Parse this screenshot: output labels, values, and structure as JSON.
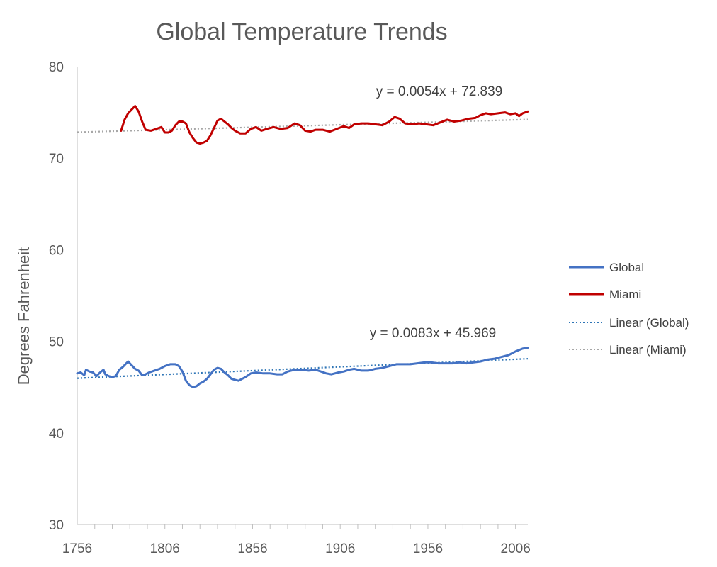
{
  "chart_data": {
    "type": "line",
    "title": "Global Temperature Trends",
    "xlabel": "",
    "ylabel": "Degrees Fahrenheit",
    "xlim": [
      1756,
      2013
    ],
    "ylim": [
      30,
      80
    ],
    "x_ticks": [
      1756,
      1806,
      1856,
      1906,
      1956,
      2006
    ],
    "y_ticks": [
      30,
      40,
      50,
      60,
      70,
      80
    ],
    "grid": false,
    "legend_position": "right",
    "series": [
      {
        "name": "Global",
        "color": "#4472c4",
        "style": "solid",
        "points": [
          [
            1756,
            46.5
          ],
          [
            1758,
            46.6
          ],
          [
            1760,
            46.3
          ],
          [
            1761,
            46.9
          ],
          [
            1763,
            46.7
          ],
          [
            1765,
            46.6
          ],
          [
            1767,
            46.2
          ],
          [
            1769,
            46.6
          ],
          [
            1771,
            46.9
          ],
          [
            1772,
            46.4
          ],
          [
            1774,
            46.2
          ],
          [
            1776,
            46.1
          ],
          [
            1778,
            46.2
          ],
          [
            1780,
            46.9
          ],
          [
            1782,
            47.2
          ],
          [
            1784,
            47.6
          ],
          [
            1785,
            47.8
          ],
          [
            1787,
            47.4
          ],
          [
            1789,
            47.0
          ],
          [
            1791,
            46.8
          ],
          [
            1793,
            46.3
          ],
          [
            1795,
            46.4
          ],
          [
            1797,
            46.6
          ],
          [
            1800,
            46.8
          ],
          [
            1803,
            47.0
          ],
          [
            1806,
            47.3
          ],
          [
            1809,
            47.5
          ],
          [
            1812,
            47.5
          ],
          [
            1814,
            47.3
          ],
          [
            1816,
            46.7
          ],
          [
            1818,
            45.7
          ],
          [
            1820,
            45.2
          ],
          [
            1822,
            45.0
          ],
          [
            1824,
            45.1
          ],
          [
            1826,
            45.4
          ],
          [
            1828,
            45.6
          ],
          [
            1830,
            45.9
          ],
          [
            1832,
            46.4
          ],
          [
            1834,
            46.9
          ],
          [
            1836,
            47.1
          ],
          [
            1838,
            47.0
          ],
          [
            1840,
            46.6
          ],
          [
            1842,
            46.3
          ],
          [
            1844,
            45.9
          ],
          [
            1846,
            45.8
          ],
          [
            1848,
            45.7
          ],
          [
            1850,
            45.9
          ],
          [
            1852,
            46.1
          ],
          [
            1855,
            46.5
          ],
          [
            1858,
            46.6
          ],
          [
            1862,
            46.5
          ],
          [
            1866,
            46.5
          ],
          [
            1870,
            46.4
          ],
          [
            1873,
            46.4
          ],
          [
            1876,
            46.7
          ],
          [
            1880,
            46.9
          ],
          [
            1884,
            46.9
          ],
          [
            1888,
            46.8
          ],
          [
            1892,
            46.9
          ],
          [
            1895,
            46.7
          ],
          [
            1898,
            46.5
          ],
          [
            1901,
            46.4
          ],
          [
            1905,
            46.6
          ],
          [
            1908,
            46.7
          ],
          [
            1911,
            46.9
          ],
          [
            1914,
            47.0
          ],
          [
            1918,
            46.8
          ],
          [
            1922,
            46.8
          ],
          [
            1926,
            47.0
          ],
          [
            1930,
            47.1
          ],
          [
            1934,
            47.3
          ],
          [
            1938,
            47.5
          ],
          [
            1942,
            47.5
          ],
          [
            1946,
            47.5
          ],
          [
            1950,
            47.6
          ],
          [
            1954,
            47.7
          ],
          [
            1958,
            47.7
          ],
          [
            1962,
            47.6
          ],
          [
            1966,
            47.6
          ],
          [
            1970,
            47.6
          ],
          [
            1974,
            47.7
          ],
          [
            1978,
            47.6
          ],
          [
            1982,
            47.7
          ],
          [
            1986,
            47.8
          ],
          [
            1990,
            48.0
          ],
          [
            1994,
            48.1
          ],
          [
            1998,
            48.3
          ],
          [
            2002,
            48.5
          ],
          [
            2006,
            48.9
          ],
          [
            2010,
            49.2
          ],
          [
            2013,
            49.3
          ]
        ],
        "trendline": {
          "name": "Linear (Global)",
          "slope": 0.0083,
          "intercept": 45.969,
          "equation": "y = 0.0083x + 45.969",
          "color": "#2e75b6",
          "style": "dotted"
        }
      },
      {
        "name": "Miami",
        "color": "#c00000",
        "style": "solid",
        "points": [
          [
            1781,
            73.0
          ],
          [
            1783,
            74.2
          ],
          [
            1785,
            74.9
          ],
          [
            1787,
            75.3
          ],
          [
            1789,
            75.7
          ],
          [
            1791,
            75.1
          ],
          [
            1793,
            74.0
          ],
          [
            1795,
            73.1
          ],
          [
            1798,
            73.0
          ],
          [
            1801,
            73.2
          ],
          [
            1804,
            73.4
          ],
          [
            1806,
            72.8
          ],
          [
            1808,
            72.8
          ],
          [
            1810,
            73.0
          ],
          [
            1812,
            73.6
          ],
          [
            1814,
            74.0
          ],
          [
            1816,
            74.0
          ],
          [
            1818,
            73.8
          ],
          [
            1820,
            72.8
          ],
          [
            1822,
            72.2
          ],
          [
            1824,
            71.7
          ],
          [
            1826,
            71.6
          ],
          [
            1828,
            71.7
          ],
          [
            1830,
            71.9
          ],
          [
            1832,
            72.5
          ],
          [
            1834,
            73.3
          ],
          [
            1836,
            74.1
          ],
          [
            1838,
            74.3
          ],
          [
            1840,
            74.0
          ],
          [
            1842,
            73.7
          ],
          [
            1844,
            73.3
          ],
          [
            1846,
            73.0
          ],
          [
            1849,
            72.7
          ],
          [
            1852,
            72.7
          ],
          [
            1855,
            73.2
          ],
          [
            1858,
            73.4
          ],
          [
            1861,
            73.0
          ],
          [
            1864,
            73.2
          ],
          [
            1868,
            73.4
          ],
          [
            1872,
            73.2
          ],
          [
            1876,
            73.3
          ],
          [
            1880,
            73.8
          ],
          [
            1883,
            73.6
          ],
          [
            1886,
            73.0
          ],
          [
            1889,
            72.9
          ],
          [
            1892,
            73.1
          ],
          [
            1896,
            73.1
          ],
          [
            1900,
            72.9
          ],
          [
            1904,
            73.2
          ],
          [
            1908,
            73.5
          ],
          [
            1911,
            73.3
          ],
          [
            1914,
            73.7
          ],
          [
            1918,
            73.8
          ],
          [
            1922,
            73.8
          ],
          [
            1926,
            73.7
          ],
          [
            1930,
            73.6
          ],
          [
            1934,
            74.0
          ],
          [
            1937,
            74.5
          ],
          [
            1940,
            74.3
          ],
          [
            1943,
            73.8
          ],
          [
            1947,
            73.7
          ],
          [
            1951,
            73.8
          ],
          [
            1955,
            73.7
          ],
          [
            1959,
            73.6
          ],
          [
            1963,
            73.9
          ],
          [
            1967,
            74.2
          ],
          [
            1971,
            74.0
          ],
          [
            1975,
            74.1
          ],
          [
            1979,
            74.3
          ],
          [
            1983,
            74.4
          ],
          [
            1986,
            74.7
          ],
          [
            1989,
            74.9
          ],
          [
            1992,
            74.8
          ],
          [
            1996,
            74.9
          ],
          [
            2000,
            75.0
          ],
          [
            2003,
            74.8
          ],
          [
            2006,
            74.9
          ],
          [
            2008,
            74.6
          ],
          [
            2010,
            74.9
          ],
          [
            2013,
            75.1
          ]
        ],
        "trendline": {
          "name": "Linear (Miami)",
          "slope": 0.0054,
          "intercept": 72.839,
          "equation": "y = 0.0054x + 72.839",
          "color": "#a6a6a6",
          "style": "dotted"
        }
      }
    ]
  }
}
